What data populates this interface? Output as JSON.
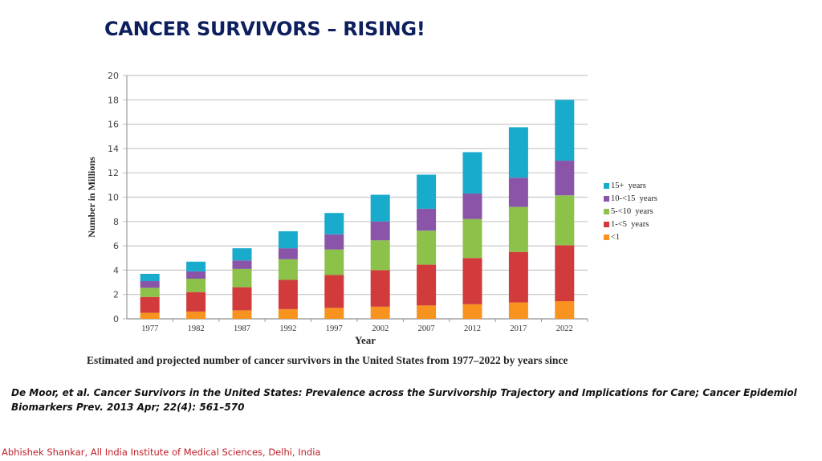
{
  "slide": {
    "title": "CANCER SURVIVORS – RISING!",
    "caption": "Estimated and projected number of cancer survivors in the United States from 1977–2022 by years since",
    "citation": "De Moor, et al. Cancer Survivors in the United States: Prevalence across the Survivorship Trajectory and Implications for Care; Cancer Epidemiol Biomarkers Prev. 2013 Apr; 22(4): 561–570",
    "footer": "Abhishek Shankar, All India Institute of Medical Sciences, Delhi, India"
  },
  "chart_data": {
    "type": "bar",
    "stacked": true,
    "title": "",
    "xlabel": "Year",
    "ylabel": "Number in Millions",
    "ylim": [
      0,
      20
    ],
    "yticks": [
      0,
      2,
      4,
      6,
      8,
      10,
      12,
      14,
      16,
      18,
      20
    ],
    "grid": true,
    "legend_position": "right",
    "categories": [
      "1977",
      "1982",
      "1987",
      "1992",
      "1997",
      "2002",
      "2007",
      "2012",
      "2017",
      "2022"
    ],
    "series": [
      {
        "name": "<1",
        "color": "#f7931e",
        "values": [
          0.5,
          0.6,
          0.7,
          0.8,
          0.9,
          1.0,
          1.1,
          1.2,
          1.35,
          1.45
        ]
      },
      {
        "name": "1-<5 years",
        "color": "#d13b3b",
        "values": [
          1.3,
          1.6,
          1.9,
          2.4,
          2.7,
          3.0,
          3.35,
          3.8,
          4.15,
          4.6
        ]
      },
      {
        "name": "5-<10 years",
        "color": "#8dc24a",
        "values": [
          0.75,
          1.1,
          1.5,
          1.7,
          2.1,
          2.45,
          2.8,
          3.2,
          3.7,
          4.1
        ]
      },
      {
        "name": "10-<15 years",
        "color": "#8a55a8",
        "values": [
          0.55,
          0.6,
          0.7,
          0.9,
          1.25,
          1.55,
          1.8,
          2.1,
          2.4,
          2.85
        ]
      },
      {
        "name": "15+ years",
        "color": "#18abcc",
        "values": [
          0.6,
          0.8,
          1.0,
          1.4,
          1.75,
          2.2,
          2.8,
          3.4,
          4.15,
          5.0
        ]
      }
    ],
    "legend_order": [
      "15+ years",
      "10-<15 years",
      "5-<10 years",
      "1-<5 years",
      "<1"
    ]
  }
}
